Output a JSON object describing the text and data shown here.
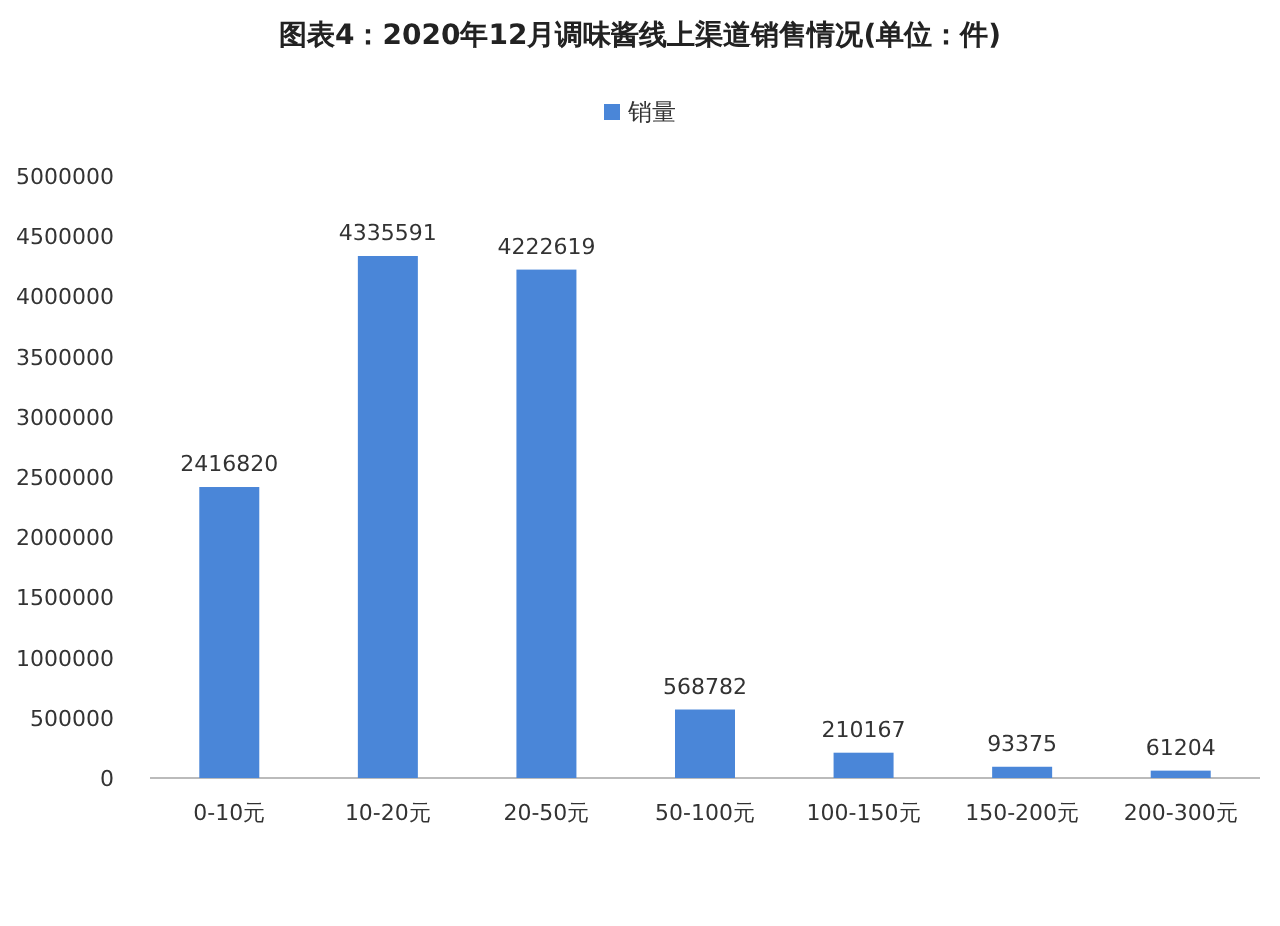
{
  "chart_data": {
    "type": "bar",
    "title": "图表4：2020年12月调味酱线上渠道销售情况(单位：件)",
    "categories": [
      "0-10元",
      "10-20元",
      "20-50元",
      "50-100元",
      "100-150元",
      "150-200元",
      "200-300元"
    ],
    "series": [
      {
        "name": "销量",
        "color": "#4a86d8",
        "values": [
          2416820,
          4335591,
          4222619,
          568782,
          210167,
          93375,
          61204
        ]
      }
    ],
    "ylim": [
      0,
      5000000
    ],
    "yticks": [
      0,
      500000,
      1000000,
      1500000,
      2000000,
      2500000,
      3000000,
      3500000,
      4000000,
      4500000,
      5000000
    ],
    "data_labels": true,
    "legend": "top",
    "grid": false
  }
}
